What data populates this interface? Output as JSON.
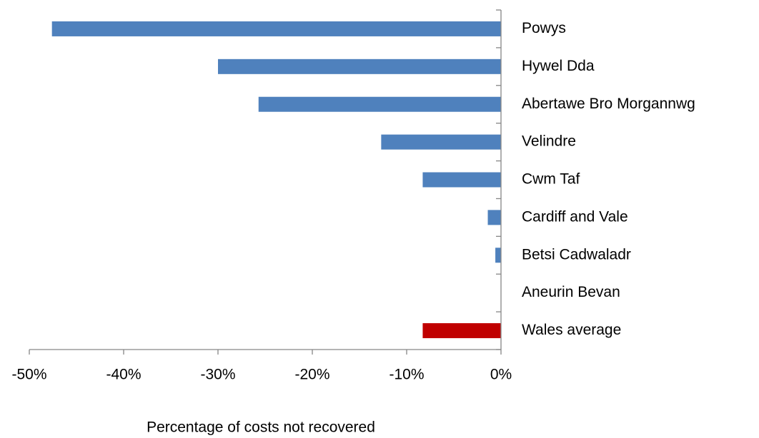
{
  "chart_data": {
    "type": "hbar",
    "x_label": "Percentage of costs not recovered",
    "categories": [
      "Powys",
      "Hywel Dda",
      "Abertawe Bro Morgannwg",
      "Velindre",
      "Cwm Taf",
      "Cardiff and Vale",
      "Betsi Cadwaladr",
      "Aneurin Bevan",
      "Wales average"
    ],
    "values": [
      -47.6,
      -30.0,
      -25.7,
      -12.7,
      -8.3,
      -1.4,
      -0.6,
      0,
      -8.3
    ],
    "colors": [
      "#4f81bd",
      "#4f81bd",
      "#4f81bd",
      "#4f81bd",
      "#4f81bd",
      "#4f81bd",
      "#4f81bd",
      "#4f81bd",
      "#c00000"
    ],
    "xlim": [
      -50,
      0
    ],
    "xticks": [
      {
        "value": -50,
        "label": "-50%"
      },
      {
        "value": -40,
        "label": "-40%"
      },
      {
        "value": -30,
        "label": "-30%"
      },
      {
        "value": -20,
        "label": "-20%"
      },
      {
        "value": -10,
        "label": "-10%"
      },
      {
        "value": 0,
        "label": "0%"
      }
    ],
    "grid": false
  }
}
